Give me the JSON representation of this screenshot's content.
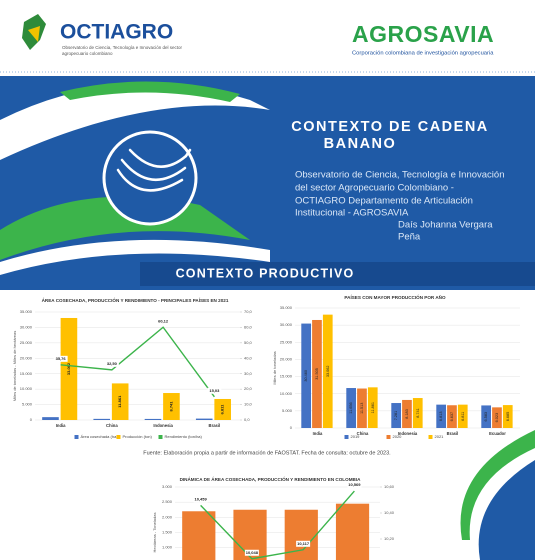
{
  "header": {
    "left_logo": "OCTIAGRO",
    "left_tagline_lines": [
      "Observatorio de Ciencia, Tecnología e Innovación del sector",
      "agropecuario colombiano"
    ],
    "right_logo": "AGROSAVIA",
    "right_tagline": "Corporación colombiana de investigación agropecuaria"
  },
  "banner": {
    "title_lines": [
      "CONTEXTO DE CADENA",
      "BANANO"
    ],
    "description_lines": [
      "Observatorio de Ciencia, Tecnología e Innovación",
      "del sector Agropecuario Colombiano -",
      "OCTIAGRO Departamento de Articulación",
      "Institucional - AGROSAVIA"
    ],
    "author_lines": [
      "Daís Johanna Vergara",
      "Peña"
    ]
  },
  "section_title": "CONTEXTO PRODUCTIVO",
  "charts": [
    {
      "type": "bar",
      "title": "ÁREA COSECHADA, PRODUCCIÓN Y RENDIMIENTO - PRINCIPALES PAÍSES EN 2021",
      "y_label": "Miles de toneladas - Miles de hectáreas",
      "categories": [
        "India",
        "China",
        "Indonesia",
        "Brasil"
      ],
      "series": [
        {
          "name": "Área cosechada (ha)",
          "color": "#4472c4",
          "values": [
            925,
            368,
            349,
            453
          ]
        },
        {
          "name": "Producción (ton)",
          "color": "#ffc000",
          "values": [
            33062,
            11861,
            8741,
            6811
          ],
          "value_labels": [
            "33.062",
            "11.861",
            "8.741",
            "6.811"
          ]
        },
        {
          "name": "Rendimiento (ton/ha)",
          "color": "#3cb44b",
          "axis": "y2",
          "values": [
            35.76,
            32.5,
            60.12,
            15.03
          ],
          "value_labels": [
            "35,76",
            "32,50",
            "60,12",
            "15,03"
          ]
        }
      ],
      "ylim": [
        0,
        35000
      ],
      "yticks": [
        0,
        {
          "value": 5000,
          "label": "5.000"
        },
        {
          "value": 10000,
          "label": "10.000"
        },
        {
          "value": 15000,
          "label": "15.000"
        },
        {
          "value": 20000,
          "label": "20.000"
        },
        {
          "value": 25000,
          "label": "25.000"
        },
        {
          "value": 30000,
          "label": "30.000"
        },
        {
          "value": 35000,
          "label": "35.000"
        }
      ],
      "y2lim": [
        0,
        70
      ],
      "y2ticks": [
        {
          "value": 0,
          "label": "0,0"
        },
        {
          "value": 10,
          "label": "10,0"
        },
        {
          "value": 20,
          "label": "20,0"
        },
        {
          "value": 30,
          "label": "30,0"
        },
        {
          "value": 40,
          "label": "40,0"
        },
        {
          "value": 50,
          "label": "50,0"
        },
        {
          "value": 60,
          "label": "60,0"
        },
        {
          "value": 70,
          "label": "70,0"
        }
      ]
    },
    {
      "type": "bar",
      "title": "PAÍSES CON MAYOR PRODUCCIÓN POR AÑO",
      "y_label": "Miles de toneladas",
      "categories": [
        "India",
        "China",
        "Indonesia",
        "Brasil",
        "Ecuador"
      ],
      "series": [
        {
          "name": "2019",
          "color": "#4472c4",
          "values": [
            30460,
            11656,
            7281,
            6813,
            6583
          ],
          "value_labels": [
            "30.460",
            "11.656",
            "7.281",
            "6.813",
            "6.583"
          ]
        },
        {
          "name": "2020",
          "color": "#ed7d31",
          "values": [
            31505,
            11513,
            8183,
            6637,
            6023
          ],
          "value_labels": [
            "31.505",
            "11.513",
            "8.183",
            "6.637",
            "6.023"
          ]
        },
        {
          "name": "2021",
          "color": "#ffc000",
          "values": [
            33062,
            11861,
            8741,
            6811,
            6685
          ],
          "value_labels": [
            "33.062",
            "11.861",
            "8.741",
            "6.811",
            "6.685"
          ]
        }
      ],
      "ylim": [
        0,
        35000
      ],
      "yticks": [
        0,
        {
          "value": 5000,
          "label": "5.000"
        },
        {
          "value": 10000,
          "label": "10.000"
        },
        {
          "value": 15000,
          "label": "15.000"
        },
        {
          "value": 20000,
          "label": "20.000"
        },
        {
          "value": 25000,
          "label": "25.000"
        },
        {
          "value": 30000,
          "label": "30.000"
        },
        {
          "value": 35000,
          "label": "35.000"
        }
      ]
    },
    {
      "type": "bar",
      "title": "DINÁMICA DE ÁREA COSECHADA, PRODUCCIÓN Y RENDIMIENTO EN COLOMBIA",
      "y_label": "Hectáreas - Toneladas",
      "series": [
        {
          "color": "#ed7d31",
          "values": [
            2200,
            2250,
            2250,
            2450
          ]
        },
        {
          "color": "#3cb44b",
          "axis": "y2",
          "values": [
            10.459,
            10.048,
            10.117,
            10.569
          ],
          "value_labels": [
            "10,459",
            "10,048",
            "10,117",
            "10,569"
          ]
        }
      ],
      "ylim": [
        0,
        3000
      ],
      "yticks": [
        {
          "value": 1000,
          "label": "1.000"
        },
        {
          "value": 1500,
          "label": "1.500"
        },
        {
          "value": 2000,
          "label": "2.000"
        },
        {
          "value": 2500,
          "label": "2.500"
        },
        {
          "value": 3000,
          "label": "3.000"
        }
      ],
      "y2lim": [
        9.9,
        10.6
      ],
      "y2ticks": [
        {
          "value": 10.0,
          "label": "10,00"
        },
        {
          "value": 10.2,
          "label": "10,20"
        },
        {
          "value": 10.4,
          "label": "10,40"
        },
        {
          "value": 10.6,
          "label": "10,60"
        }
      ]
    }
  ],
  "source": "Fuente: Elaboración propia a partir de información de FAOSTAT. Fecha de consulta: octubre de 2023."
}
